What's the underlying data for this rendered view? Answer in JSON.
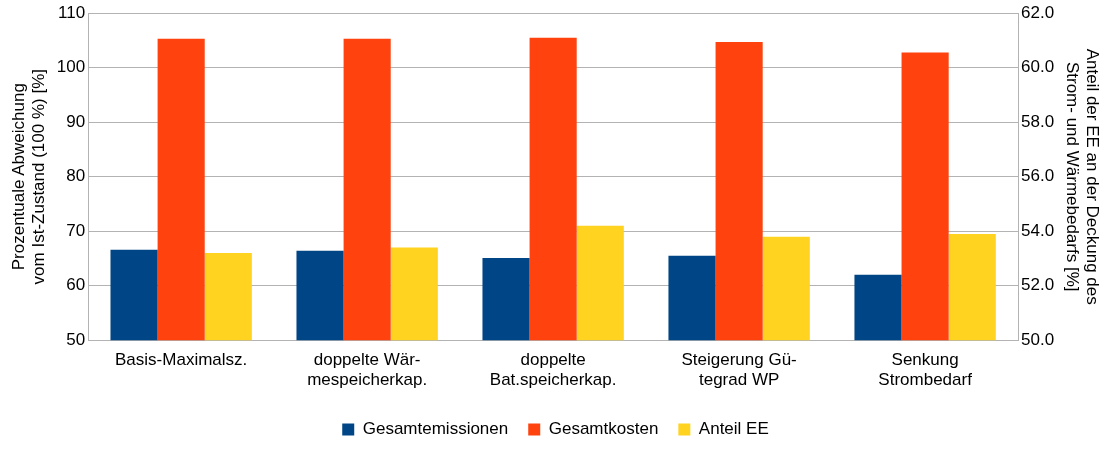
{
  "chart_data": {
    "type": "bar",
    "ylabel": "Prozentuale Abweichung\nvom Ist-Zustand (100 %) [%]",
    "y2label": "Anteil der EE an der Deckung des\nStrom- und Wärmebedarfs [%]",
    "categories": [
      "Basis-Maximalsz.",
      "doppelte Wär-\nmespeicherkap.",
      "doppelte\nBat.speicherkap.",
      "Steigerung Gü-\ntegrad WP",
      "Senkung\nStrombedarf"
    ],
    "series": [
      {
        "name": "Gesamtemissionen",
        "color": "#004586",
        "values": [
          66.6,
          66.4,
          65.1,
          65.5,
          62.0
        ]
      },
      {
        "name": "Gesamtkosten",
        "color": "#ff420e",
        "values": [
          105.3,
          105.3,
          105.5,
          104.7,
          102.8
        ]
      },
      {
        "name": "Anteil EE",
        "color": "#ffd320",
        "axis": "y2",
        "values": [
          53.2,
          53.4,
          54.2,
          53.8,
          53.9
        ]
      }
    ],
    "ylim": [
      50,
      110
    ],
    "yticks": [
      50,
      60,
      70,
      80,
      90,
      100,
      110
    ],
    "y2lim": [
      50,
      62
    ],
    "y2ticks": [
      {
        "value": 50,
        "label": "50.0"
      },
      {
        "value": 52,
        "label": "52.0"
      },
      {
        "value": 54,
        "label": "54.0"
      },
      {
        "value": 56,
        "label": "56.0"
      },
      {
        "value": 58,
        "label": "58.0"
      },
      {
        "value": 60,
        "label": "60.0"
      },
      {
        "value": 62,
        "label": "62.0"
      }
    ],
    "grid": "y",
    "legend": "bottom"
  }
}
